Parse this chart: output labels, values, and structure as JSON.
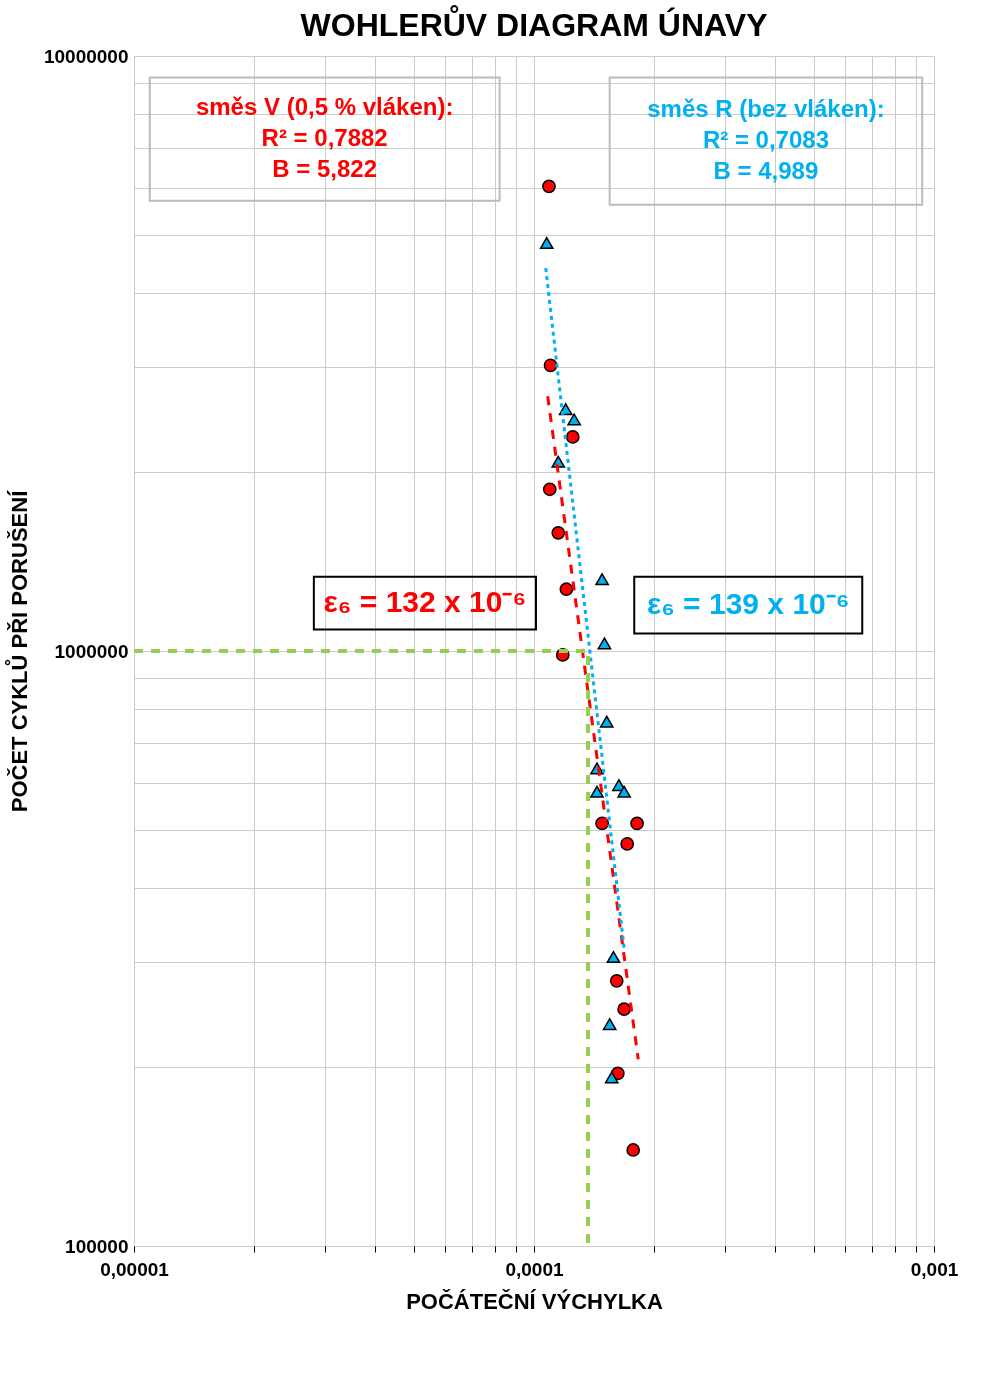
{
  "chart_data": {
    "type": "scatter",
    "title": "WOHLERŮV DIAGRAM ÚNAVY",
    "xlabel": "POČÁTEČNÍ VÝCHYLKA",
    "ylabel": "POČET CYKLŮ PŘI PORUŠENÍ",
    "log": "xy",
    "grid": true,
    "xlim": [
      1e-05,
      0.001
    ],
    "ylim": [
      100000,
      10000000
    ],
    "xticks": [
      {
        "value": 1e-05,
        "label": "0,00001"
      },
      {
        "value": 2e-05,
        "label": null
      },
      {
        "value": 3e-05,
        "label": null
      },
      {
        "value": 4e-05,
        "label": null
      },
      {
        "value": 5e-05,
        "label": null
      },
      {
        "value": 6e-05,
        "label": null
      },
      {
        "value": 7e-05,
        "label": null
      },
      {
        "value": 8e-05,
        "label": null
      },
      {
        "value": 9e-05,
        "label": null
      },
      {
        "value": 0.0001,
        "label": "0,0001"
      },
      {
        "value": 0.0002,
        "label": null
      },
      {
        "value": 0.0003,
        "label": null
      },
      {
        "value": 0.0004,
        "label": null
      },
      {
        "value": 0.0005,
        "label": null
      },
      {
        "value": 0.0006,
        "label": null
      },
      {
        "value": 0.0007,
        "label": null
      },
      {
        "value": 0.0008,
        "label": null
      },
      {
        "value": 0.0009,
        "label": null
      },
      {
        "value": 0.001,
        "label": "0,001"
      }
    ],
    "yticks": [
      100000,
      {
        "value": 200000,
        "label": null
      },
      {
        "value": 300000,
        "label": null
      },
      {
        "value": 400000,
        "label": null
      },
      {
        "value": 500000,
        "label": null
      },
      {
        "value": 600000,
        "label": null
      },
      {
        "value": 700000,
        "label": null
      },
      {
        "value": 800000,
        "label": null
      },
      {
        "value": 900000,
        "label": null
      },
      1000000,
      {
        "value": 2000000,
        "label": null
      },
      {
        "value": 3000000,
        "label": null
      },
      {
        "value": 4000000,
        "label": null
      },
      {
        "value": 5000000,
        "label": null
      },
      {
        "value": 6000000,
        "label": null
      },
      {
        "value": 7000000,
        "label": null
      },
      {
        "value": 8000000,
        "label": null
      },
      {
        "value": 9000000,
        "label": null
      },
      10000000
    ],
    "annotations": [
      "směs V (0,5 % vláken):\nR² = 0,7882\nB = 5,822",
      "směs R (bez vláken):\nR² = 0,7083\nB = 4,989",
      "ε₆ = 132 x 10⁻⁶",
      "ε₆ = 139 x 10⁻⁶"
    ],
    "series": [
      {
        "color": "#ff0000",
        "marker": "circle",
        "x": [
          0.000109,
          0.00011,
          0.000125,
          0.0001095,
          0.000115,
          0.0001205,
          0.000118,
          0.000148,
          0.000181,
          0.000171,
          0.000161,
          0.000168,
          0.000162,
          0.000177
        ],
        "values": [
          6040000,
          3020000,
          2290000,
          1870000,
          1580000,
          1270000,
          985000,
          513000,
          513000,
          474000,
          279000,
          250000,
          195000,
          145000
        ]
      },
      {
        "color": "#00b0f0",
        "marker": "triangle",
        "x": [
          0.0001076,
          0.00012,
          0.000126,
          0.000115,
          0.000148,
          0.00015,
          0.000152,
          0.0001437,
          0.0001437,
          0.000163,
          0.000168,
          0.000158,
          0.0001546,
          0.0001564
        ],
        "values": [
          4850000,
          2550000,
          2450000,
          2080000,
          1320000,
          1030000,
          761000,
          635000,
          580000,
          595000,
          580000,
          306000,
          236000,
          192000
        ]
      },
      {
        "type": "line",
        "color": "#ff0000",
        "line_style": "dashed",
        "x": [
          0.0001082,
          0.0001822
        ],
        "values": [
          2680000,
          206000
        ]
      },
      {
        "type": "line",
        "color": "#00b0f0",
        "line_style": "dotted",
        "x": [
          0.000107,
          0.0001683
        ],
        "values": [
          4400000,
          313000
        ]
      },
      {
        "type": "line",
        "color": "#92d050",
        "line_style": "dashed",
        "x": [
          1e-05,
          0.0001365,
          0.0001365
        ],
        "values": [
          1000000,
          1000000,
          100000
        ]
      }
    ]
  }
}
